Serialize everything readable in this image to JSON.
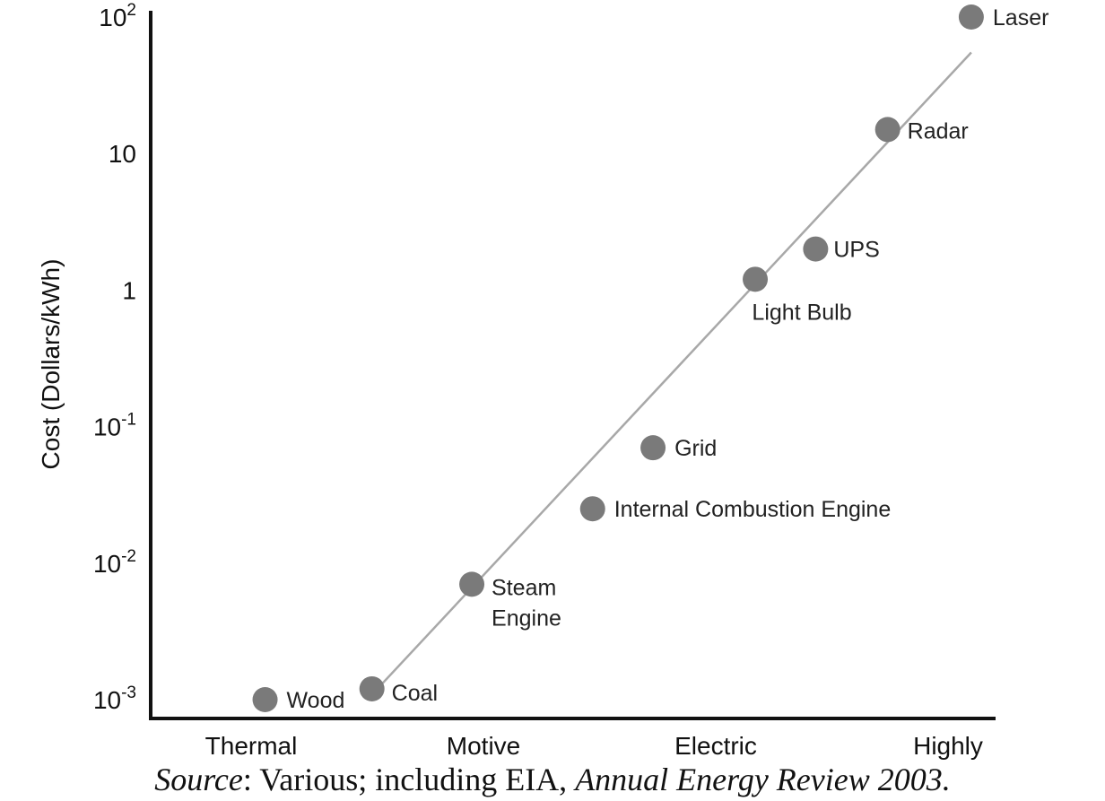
{
  "chart_data": {
    "type": "scatter",
    "ylabel": "Cost (Dollars/kWh)",
    "yscale": "log",
    "ylim": [
      0.001,
      100
    ],
    "yticks": [
      {
        "value": 100,
        "base": "10",
        "exp": "2"
      },
      {
        "value": 10,
        "base": "10",
        "exp": ""
      },
      {
        "value": 1,
        "base": "1",
        "exp": ""
      },
      {
        "value": 0.1,
        "base": "10",
        "exp": "-1"
      },
      {
        "value": 0.01,
        "base": "10",
        "exp": "-2"
      },
      {
        "value": 0.001,
        "base": "10",
        "exp": "-3"
      }
    ],
    "categories": [
      "Thermal",
      "Motive",
      "Electric",
      "Highly"
    ],
    "colors": {
      "marker": "#7a7a7a",
      "trend": "#a8a8a8",
      "axis": "#111111"
    },
    "points": [
      {
        "label": "Wood",
        "category_pos": 0.06,
        "value": 0.001
      },
      {
        "label": "Coal",
        "category_pos": 0.52,
        "value": 0.0012
      },
      {
        "label": "Steam Engine",
        "category_pos": 0.95,
        "value": 0.007
      },
      {
        "label": "Internal Combustion Engine",
        "category_pos": 1.47,
        "value": 0.025
      },
      {
        "label": "Grid",
        "category_pos": 1.73,
        "value": 0.07
      },
      {
        "label": "Light Bulb",
        "category_pos": 2.17,
        "value": 1.2
      },
      {
        "label": "UPS",
        "category_pos": 2.43,
        "value": 2
      },
      {
        "label": "Radar",
        "category_pos": 2.74,
        "value": 15
      },
      {
        "label": "Laser",
        "category_pos": 3.1,
        "value": 100
      }
    ],
    "trendline": [
      {
        "category_pos": 0.5,
        "value": 0.001
      },
      {
        "category_pos": 3.1,
        "value": 55
      }
    ]
  },
  "source": {
    "label": "Source",
    "text": ": Various; including EIA, ",
    "title": "Annual Energy Review 2003."
  }
}
